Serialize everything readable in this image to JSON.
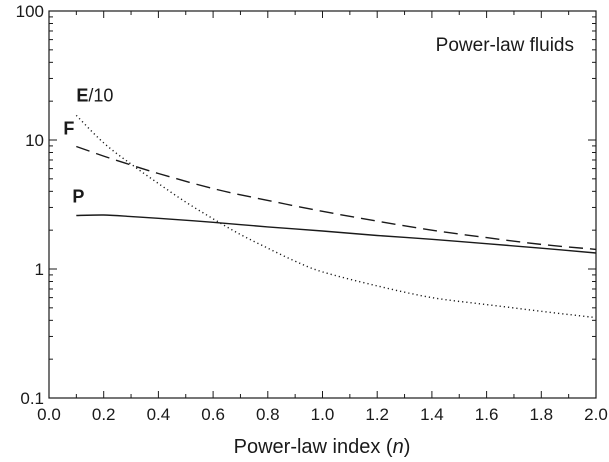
{
  "chart_data": {
    "type": "line",
    "annotation": "Power-law fluids",
    "xlabel": {
      "prefix": "Power-law index (",
      "var": "n",
      "suffix": ")"
    },
    "ylabel": "",
    "xlim": [
      0,
      2
    ],
    "ylim": [
      0.1,
      100
    ],
    "yscale": "log",
    "x_ticks": [
      "0.0",
      "0.2",
      "0.4",
      "0.6",
      "0.8",
      "1.0",
      "1.2",
      "1.4",
      "1.6",
      "1.8",
      "2.0"
    ],
    "y_ticks": [
      {
        "value": 0.1,
        "label": "0.1"
      },
      {
        "value": 1,
        "label": "1"
      },
      {
        "value": 10,
        "label": "10"
      },
      {
        "value": 100,
        "label": "100"
      }
    ],
    "grid": false,
    "series": [
      {
        "label_bold": "E",
        "label_rest": "/10",
        "style": "dotted",
        "x": [
          0.1,
          0.2,
          0.3,
          0.4,
          0.5,
          0.6,
          0.7,
          0.8,
          0.9,
          1.0,
          1.2,
          1.4,
          1.6,
          1.8,
          2.0
        ],
        "y": [
          15.5,
          9.5,
          6.5,
          4.6,
          3.3,
          2.45,
          1.85,
          1.45,
          1.15,
          0.95,
          0.74,
          0.6,
          0.53,
          0.47,
          0.42
        ]
      },
      {
        "label_bold": "F",
        "label_rest": "",
        "style": "dashed",
        "x": [
          0.1,
          0.2,
          0.3,
          0.4,
          0.6,
          0.8,
          1.0,
          1.2,
          1.4,
          1.6,
          1.8,
          2.0
        ],
        "y": [
          8.9,
          7.5,
          6.4,
          5.5,
          4.2,
          3.4,
          2.8,
          2.35,
          2.0,
          1.75,
          1.55,
          1.42
        ]
      },
      {
        "label_bold": "P",
        "label_rest": "",
        "style": "solid",
        "x": [
          0.1,
          0.2,
          0.3,
          0.4,
          0.6,
          0.8,
          1.0,
          1.2,
          1.4,
          1.6,
          1.8,
          2.0
        ],
        "y": [
          2.6,
          2.62,
          2.55,
          2.47,
          2.3,
          2.12,
          1.97,
          1.82,
          1.7,
          1.57,
          1.45,
          1.33
        ]
      }
    ]
  }
}
